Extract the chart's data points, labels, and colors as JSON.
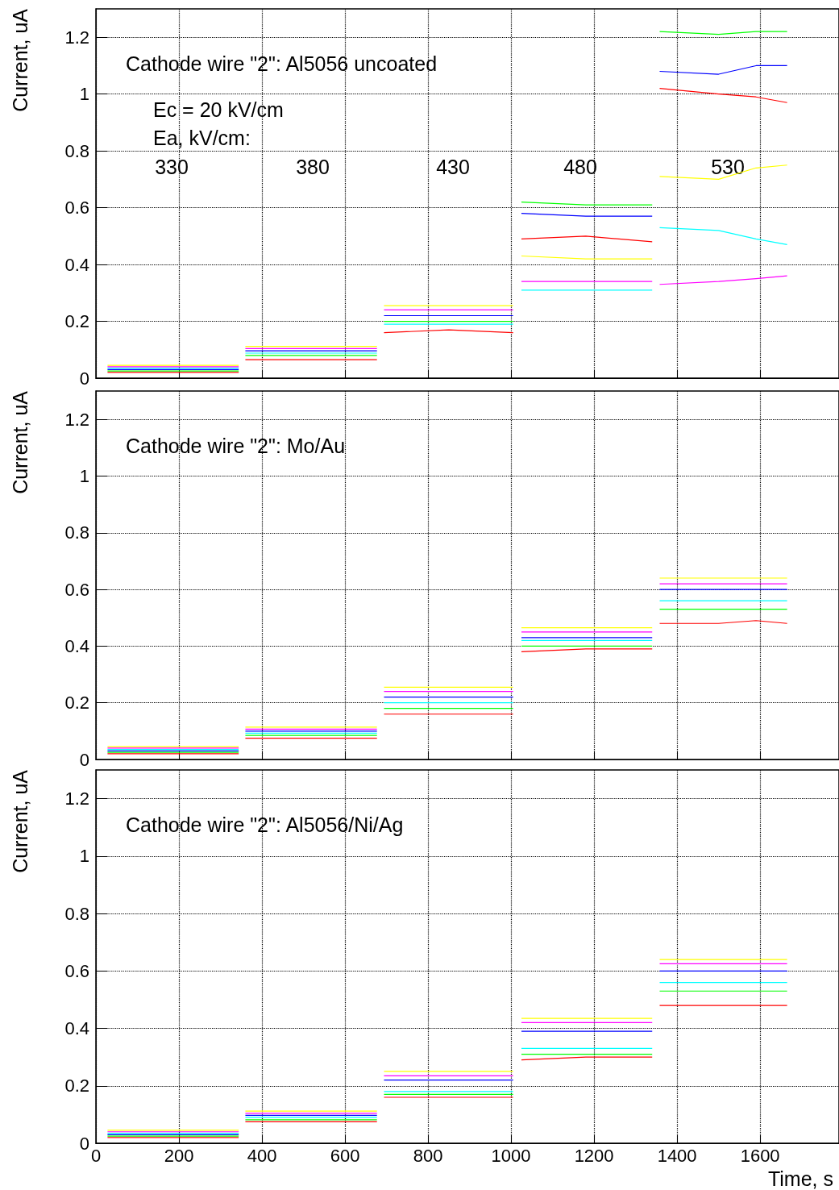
{
  "chart_data": [
    {
      "type": "line",
      "title": "Cathode wire \"2\": Al5056 uncoated",
      "ylabel": "Current, uA",
      "annotations": [
        "Ec = 20 kV/cm",
        "Ea, kV/cm:",
        "330",
        "380",
        "430",
        "480",
        "530"
      ],
      "x": [
        28,
        190,
        344,
        350,
        360,
        520,
        677,
        685,
        694,
        850,
        1005,
        1015,
        1025,
        1180,
        1340,
        1350,
        1358,
        1500,
        1590,
        1665
      ],
      "series": [
        {
          "color": "#ff0000",
          "values": [
            0.02,
            0.02,
            0.02,
            null,
            0.065,
            0.065,
            0.065,
            null,
            0.16,
            0.17,
            0.16,
            null,
            0.49,
            0.5,
            0.48,
            null,
            1.02,
            1.0,
            0.99,
            0.97
          ]
        },
        {
          "color": "#00ff00",
          "values": [
            0.025,
            0.025,
            0.025,
            null,
            0.08,
            0.08,
            0.08,
            null,
            0.2,
            0.2,
            0.2,
            null,
            0.62,
            0.61,
            0.61,
            null,
            1.22,
            1.21,
            1.22,
            1.22
          ]
        },
        {
          "color": "#0000ff",
          "values": [
            0.03,
            0.03,
            0.03,
            null,
            0.096,
            0.096,
            0.096,
            null,
            0.22,
            0.22,
            0.22,
            null,
            0.58,
            0.57,
            0.57,
            null,
            1.08,
            1.07,
            1.1,
            1.1
          ]
        },
        {
          "color": "#ffff00",
          "values": [
            0.045,
            0.045,
            0.045,
            null,
            0.112,
            0.112,
            0.112,
            null,
            0.255,
            0.255,
            0.255,
            null,
            0.43,
            0.42,
            0.42,
            null,
            0.71,
            0.7,
            0.74,
            0.75
          ]
        },
        {
          "color": "#ff00ff",
          "values": [
            0.04,
            0.04,
            0.04,
            null,
            0.104,
            0.104,
            0.104,
            null,
            0.24,
            0.24,
            0.24,
            null,
            0.34,
            0.34,
            0.34,
            null,
            0.33,
            0.34,
            0.35,
            0.36
          ]
        },
        {
          "color": "#00ffff",
          "values": [
            0.035,
            0.035,
            0.035,
            null,
            0.088,
            0.088,
            0.088,
            null,
            0.19,
            0.19,
            0.19,
            null,
            0.31,
            0.31,
            0.31,
            null,
            0.53,
            0.52,
            0.49,
            0.47
          ]
        }
      ],
      "xlim": [
        0,
        1790
      ],
      "xticks": [
        0,
        200,
        400,
        600,
        800,
        1000,
        1200,
        1400,
        1600
      ],
      "ylim": [
        0,
        1.3
      ],
      "yticks": [
        0,
        0.2,
        0.4,
        0.6,
        0.8,
        1,
        1.2
      ],
      "grid": true,
      "tick_labels": "y",
      "line_style": "solid"
    },
    {
      "type": "line",
      "title": "Cathode wire \"2\": Mo/Au",
      "ylabel": "Current, uA",
      "x": [
        28,
        190,
        344,
        350,
        360,
        520,
        677,
        685,
        694,
        850,
        1005,
        1015,
        1025,
        1180,
        1340,
        1350,
        1358,
        1500,
        1590,
        1665
      ],
      "series": [
        {
          "color": "#ff0000",
          "values": [
            0.02,
            0.02,
            0.02,
            null,
            0.075,
            0.075,
            0.075,
            null,
            0.16,
            0.16,
            0.16,
            null,
            0.38,
            0.39,
            0.39,
            null,
            0.48,
            0.48,
            0.49,
            0.48
          ]
        },
        {
          "color": "#00ff00",
          "values": [
            0.025,
            0.025,
            0.025,
            null,
            0.085,
            0.085,
            0.085,
            null,
            0.18,
            0.18,
            0.18,
            null,
            0.4,
            0.4,
            0.4,
            null,
            0.53,
            0.53,
            0.53,
            0.53
          ]
        },
        {
          "color": "#0000ff",
          "values": [
            0.03,
            0.03,
            0.03,
            null,
            0.1,
            0.1,
            0.1,
            null,
            0.22,
            0.22,
            0.22,
            null,
            0.43,
            0.43,
            0.43,
            null,
            0.6,
            0.6,
            0.6,
            0.6
          ]
        },
        {
          "color": "#ffff00",
          "values": [
            0.045,
            0.045,
            0.045,
            null,
            0.114,
            0.114,
            0.114,
            null,
            0.255,
            0.255,
            0.255,
            null,
            0.465,
            0.465,
            0.465,
            null,
            0.64,
            0.64,
            0.64,
            0.64
          ]
        },
        {
          "color": "#ff00ff",
          "values": [
            0.04,
            0.04,
            0.04,
            null,
            0.107,
            0.107,
            0.107,
            null,
            0.24,
            0.24,
            0.24,
            null,
            0.45,
            0.45,
            0.45,
            null,
            0.62,
            0.62,
            0.62,
            0.62
          ]
        },
        {
          "color": "#00ffff",
          "values": [
            0.035,
            0.035,
            0.035,
            null,
            0.093,
            0.093,
            0.093,
            null,
            0.2,
            0.2,
            0.2,
            null,
            0.42,
            0.42,
            0.42,
            null,
            0.56,
            0.56,
            0.56,
            0.56
          ]
        }
      ],
      "xlim": [
        0,
        1790
      ],
      "xticks": [
        0,
        200,
        400,
        600,
        800,
        1000,
        1200,
        1400,
        1600
      ],
      "ylim": [
        0,
        1.3
      ],
      "yticks": [
        0,
        0.2,
        0.4,
        0.6,
        0.8,
        1,
        1.2
      ],
      "grid": true,
      "tick_labels": "y",
      "line_style": "solid"
    },
    {
      "type": "line",
      "title": "Cathode wire \"2\": Al5056/Ni/Ag",
      "xlabel": "Time, s",
      "ylabel": "Current, uA",
      "x": [
        28,
        190,
        344,
        350,
        360,
        520,
        677,
        685,
        694,
        850,
        1005,
        1015,
        1025,
        1180,
        1340,
        1350,
        1358,
        1500,
        1590,
        1665
      ],
      "series": [
        {
          "color": "#ff0000",
          "values": [
            0.02,
            0.02,
            0.02,
            null,
            0.075,
            0.075,
            0.075,
            null,
            0.16,
            0.16,
            0.16,
            null,
            0.29,
            0.3,
            0.3,
            null,
            0.48,
            0.48,
            0.48,
            0.48
          ]
        },
        {
          "color": "#00ff00",
          "values": [
            0.025,
            0.025,
            0.025,
            null,
            0.082,
            0.082,
            0.082,
            null,
            0.17,
            0.17,
            0.17,
            null,
            0.31,
            0.31,
            0.31,
            null,
            0.53,
            0.53,
            0.53,
            0.53
          ]
        },
        {
          "color": "#0000ff",
          "values": [
            0.03,
            0.03,
            0.03,
            null,
            0.097,
            0.097,
            0.097,
            null,
            0.22,
            0.22,
            0.22,
            null,
            0.39,
            0.39,
            0.39,
            null,
            0.6,
            0.6,
            0.6,
            0.6
          ]
        },
        {
          "color": "#ffff00",
          "values": [
            0.045,
            0.045,
            0.045,
            null,
            0.112,
            0.112,
            0.112,
            null,
            0.25,
            0.25,
            0.25,
            null,
            0.435,
            0.435,
            0.435,
            null,
            0.64,
            0.64,
            0.64,
            0.64
          ]
        },
        {
          "color": "#ff00ff",
          "values": [
            0.04,
            0.04,
            0.04,
            null,
            0.104,
            0.104,
            0.104,
            null,
            0.235,
            0.235,
            0.235,
            null,
            0.42,
            0.42,
            0.42,
            null,
            0.625,
            0.625,
            0.625,
            0.625
          ]
        },
        {
          "color": "#00ffff",
          "values": [
            0.035,
            0.035,
            0.035,
            null,
            0.09,
            0.09,
            0.09,
            null,
            0.18,
            0.18,
            0.18,
            null,
            0.33,
            0.33,
            0.33,
            null,
            0.56,
            0.56,
            0.56,
            0.56
          ]
        }
      ],
      "xlim": [
        0,
        1790
      ],
      "xticks": [
        0,
        200,
        400,
        600,
        800,
        1000,
        1200,
        1400,
        1600
      ],
      "ylim": [
        0,
        1.3
      ],
      "yticks": [
        0,
        0.2,
        0.4,
        0.6,
        0.8,
        1,
        1.2
      ],
      "grid": true,
      "line_style": "solid"
    }
  ]
}
